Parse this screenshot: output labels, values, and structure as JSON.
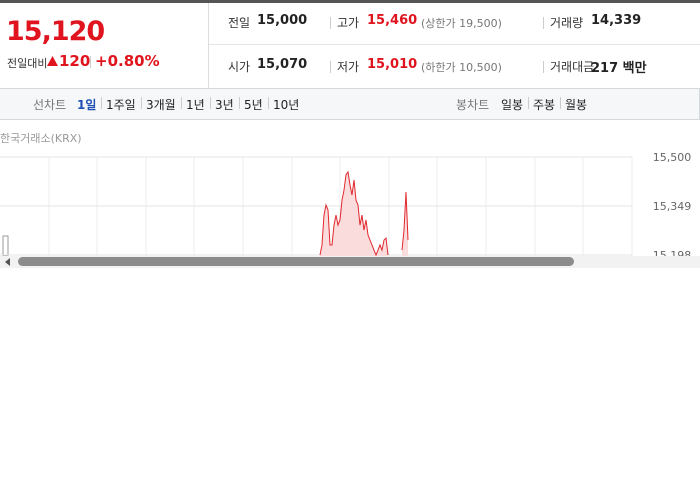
{
  "summary": {
    "price": "15,120",
    "change_label": "전일대비",
    "change": "120",
    "change_rate": "+0.80%"
  },
  "stats": [
    {
      "label": "전일",
      "value": "15,000"
    },
    {
      "label": "고가",
      "value": "15,460",
      "note": "(상한가 19,500)"
    },
    {
      "label": "거래량",
      "value": "14,339"
    },
    {
      "label": "시가",
      "value": "15,070"
    },
    {
      "label": "저가",
      "value": "15,010",
      "note": "(하한가 10,500)"
    },
    {
      "label": "거래대금",
      "value": "217 백만"
    }
  ],
  "toolbar": {
    "line_label": "선차트",
    "line_periods": [
      "1일",
      "1주일",
      "3개월",
      "1년",
      "3년",
      "5년",
      "10년"
    ],
    "candle_label": "봉차트",
    "candle_periods": [
      "일봉",
      "주봉",
      "월봉"
    ]
  },
  "chart": {
    "source": "한국거래소(KRX)",
    "color": "#e0282e",
    "values": [
      15198,
      15229,
      15321,
      15352,
      15337,
      15229,
      15229,
      15290,
      15321,
      15290,
      15306,
      15367,
      15398,
      15445,
      15454,
      15414,
      15383,
      15429,
      15367,
      15352,
      15290,
      15321,
      15275,
      15306,
      15260,
      15244,
      15229,
      15213,
      15198,
      15213,
      15229,
      15213,
      15244,
      15250,
      15198,
      null,
      null,
      null,
      null,
      null,
      null,
      15213,
      15275,
      15392,
      15244
    ],
    "ylim": [
      15198,
      15500
    ],
    "yticks": [
      {
        "value": 15500,
        "label": "15,500"
      },
      {
        "value": 15349,
        "label": "15,349"
      },
      {
        "value": 15198,
        "label": "15,198"
      }
    ]
  }
}
